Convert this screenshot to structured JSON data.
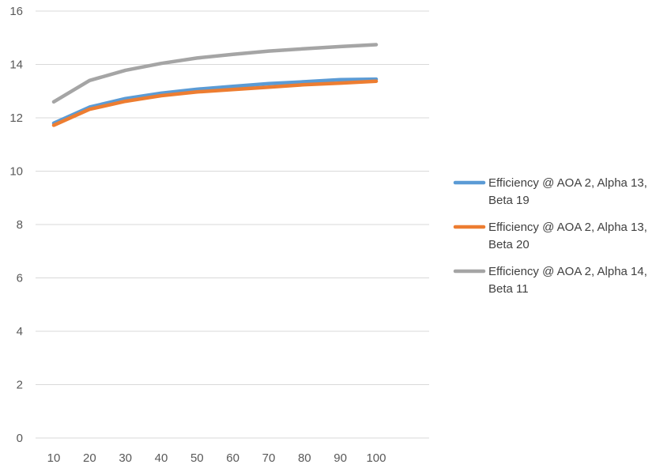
{
  "chart_data": {
    "type": "line",
    "title": "",
    "xlabel": "",
    "ylabel": "",
    "x": [
      10,
      20,
      30,
      40,
      50,
      60,
      70,
      80,
      90,
      100
    ],
    "ylim": [
      0,
      16
    ],
    "yticks": [
      0,
      2,
      4,
      6,
      8,
      10,
      12,
      14,
      16
    ],
    "grid": "horizontal",
    "legend_position": "right",
    "series": [
      {
        "name": "Efficiency @ AOA 2, Alpha 13, Beta 19",
        "legend_lines": [
          "Efficiency @ AOA 2, Alpha 13,",
          "Beta 19"
        ],
        "color": "#5B9BD5",
        "values": [
          11.8,
          12.4,
          12.72,
          12.92,
          13.07,
          13.18,
          13.28,
          13.35,
          13.43,
          13.45
        ]
      },
      {
        "name": "Efficiency @ AOA 2, Alpha 13, Beta 20",
        "legend_lines": [
          "Efficiency @ AOA 2, Alpha 13,",
          "Beta 20"
        ],
        "color": "#ED7D31",
        "values": [
          11.72,
          12.32,
          12.62,
          12.83,
          12.97,
          13.06,
          13.15,
          13.24,
          13.3,
          13.37
        ]
      },
      {
        "name": "Efficiency @ AOA 2, Alpha 14, Beta 11",
        "legend_lines": [
          "Efficiency @ AOA 2, Alpha 14,",
          "Beta 11"
        ],
        "color": "#A5A5A5",
        "values": [
          12.6,
          13.4,
          13.78,
          14.04,
          14.24,
          14.38,
          14.5,
          14.59,
          14.67,
          14.74
        ]
      }
    ]
  }
}
